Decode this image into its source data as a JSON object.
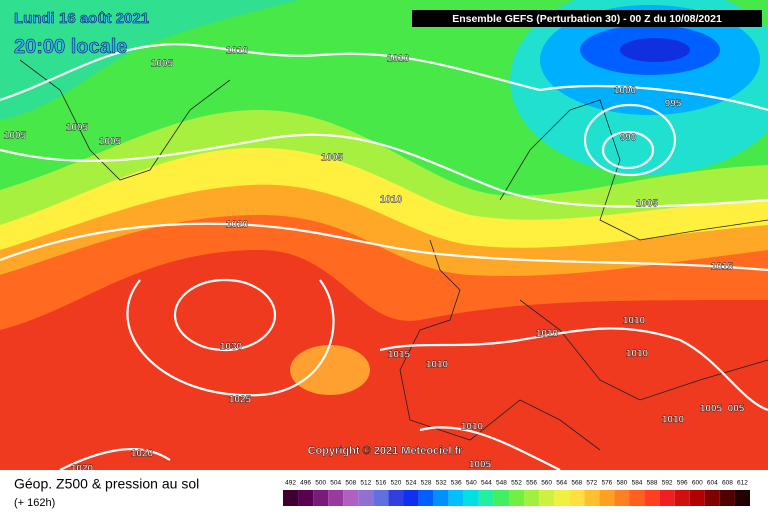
{
  "header": {
    "date": "Lundi 16 août 2021",
    "time": "20:00 locale",
    "model": "Ensemble GEFS  (Perturbation 30)  - 00 Z du 10/08/2021"
  },
  "map": {
    "isobar_labels": [
      "1010",
      "1005",
      "1010",
      "1005",
      "1005",
      "1005",
      "1000",
      "995",
      "990",
      "1005",
      "1010",
      "1005",
      "1020",
      "1015",
      "1010",
      "1010",
      "1030",
      "1010",
      "1015",
      "1010",
      "1025",
      "1005",
      "005",
      "1010",
      "1010",
      "1020",
      "1020",
      "1005"
    ],
    "copyright": "Copyright © 2021 Meteociel.fr"
  },
  "legend": {
    "title": "Géop. Z500 & pression au sol",
    "subtitle": "(+ 162h)",
    "scale": [
      {
        "label": "492",
        "color": "#3d0030"
      },
      {
        "label": "496",
        "color": "#5a0050"
      },
      {
        "label": "500",
        "color": "#7a1a7a"
      },
      {
        "label": "504",
        "color": "#9a3aa0"
      },
      {
        "label": "508",
        "color": "#b060c0"
      },
      {
        "label": "512",
        "color": "#9070d0"
      },
      {
        "label": "516",
        "color": "#6070e0"
      },
      {
        "label": "520",
        "color": "#3040e0"
      },
      {
        "label": "524",
        "color": "#1030f0"
      },
      {
        "label": "528",
        "color": "#0060ff"
      },
      {
        "label": "532",
        "color": "#0090ff"
      },
      {
        "label": "536",
        "color": "#00c0ff"
      },
      {
        "label": "540",
        "color": "#00e0e0"
      },
      {
        "label": "544",
        "color": "#20f0a0"
      },
      {
        "label": "548",
        "color": "#40f060"
      },
      {
        "label": "552",
        "color": "#70f040"
      },
      {
        "label": "556",
        "color": "#a0f040"
      },
      {
        "label": "560",
        "color": "#d0f040"
      },
      {
        "label": "564",
        "color": "#f0f040"
      },
      {
        "label": "568",
        "color": "#ffe040"
      },
      {
        "label": "572",
        "color": "#ffc030"
      },
      {
        "label": "576",
        "color": "#ffa020"
      },
      {
        "label": "580",
        "color": "#ff8020"
      },
      {
        "label": "584",
        "color": "#ff6020"
      },
      {
        "label": "588",
        "color": "#ff4020"
      },
      {
        "label": "592",
        "color": "#f02020"
      },
      {
        "label": "596",
        "color": "#d01010"
      },
      {
        "label": "600",
        "color": "#b00000"
      },
      {
        "label": "604",
        "color": "#800000"
      },
      {
        "label": "608",
        "color": "#500000"
      },
      {
        "label": "612",
        "color": "#200000"
      }
    ]
  }
}
